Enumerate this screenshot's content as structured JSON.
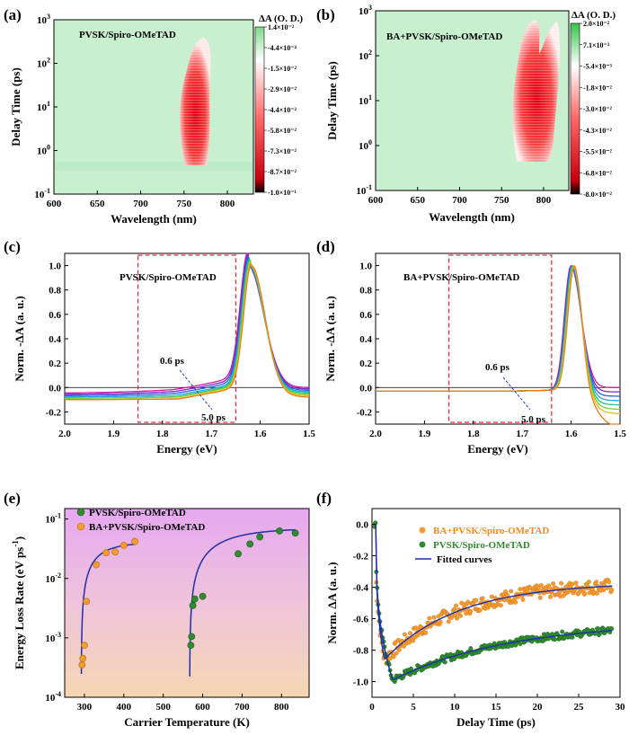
{
  "panels": {
    "a": {
      "label": "(a)",
      "sample": "PVSK/Spiro-OMeTAD",
      "xlabel": "Wavelength   (nm)",
      "ylabel": "Delay Time   (ps)",
      "xticks": [
        "600",
        "650",
        "700",
        "750",
        "800"
      ],
      "yticks": [
        "10",
        "10",
        "10",
        "10",
        "10"
      ],
      "yexp": [
        "-1",
        "0",
        "1",
        "2",
        "3"
      ],
      "cb_title": "ΔA (O. D.)",
      "cb_ticks": [
        "1.4×10⁻²",
        "-4.4×10⁻⁴",
        "-1.5×10⁻²",
        "-2.9×10⁻²",
        "-4.4×10⁻²",
        "-5.8×10⁻²",
        "-7.3×10⁻²",
        "-8.7×10⁻²",
        "-1.0×10⁻¹"
      ]
    },
    "b": {
      "label": "(b)",
      "sample": "BA+PVSK/Spiro-OMeTAD",
      "xlabel": "Wavelength   (nm)",
      "ylabel": "Delay Time   (ps)",
      "xticks": [
        "600",
        "650",
        "700",
        "750",
        "800"
      ],
      "yticks": [
        "10",
        "10",
        "10",
        "10",
        "10"
      ],
      "yexp": [
        "-1",
        "0",
        "1",
        "2",
        "3"
      ],
      "cb_title": "ΔA (O. D.)",
      "cb_ticks": [
        "2.0×10⁻²",
        "7.1×10⁻³",
        "-5.4×10⁻³",
        "-1.8×10⁻²",
        "-3.0×10⁻²",
        "-4.3×10⁻²",
        "-5.5×10⁻²",
        "-6.8×10⁻²",
        "-8.0×10⁻²"
      ]
    },
    "c": {
      "label": "(c)",
      "sample": "PVSK/Spiro-OMeTAD",
      "xlabel": "Energy   (eV)",
      "ylabel": "Norm. -ΔA   (a. u.)",
      "xticks": [
        "2.0",
        "1.9",
        "1.8",
        "1.7",
        "1.6",
        "1.5"
      ],
      "yticks": [
        "-0.2",
        "0.0",
        "0.2",
        "0.4",
        "0.6",
        "0.8",
        "1.0"
      ],
      "ann_start": "0.6 ps",
      "ann_end": "5.0 ps"
    },
    "d": {
      "label": "(d)",
      "sample": "BA+PVSK/Spiro-OMeTAD",
      "xlabel": "Energy   (eV)",
      "ylabel": "Norm. -ΔA   (a. u.)",
      "xticks": [
        "2.0",
        "1.9",
        "1.8",
        "1.7",
        "1.6",
        "1.5"
      ],
      "yticks": [
        "-0.2",
        "0.0",
        "0.2",
        "0.4",
        "0.6",
        "0.8",
        "1.0"
      ],
      "ann_start": "0.6 ps",
      "ann_end": "5.0 ps"
    },
    "e": {
      "label": "(e)",
      "xlabel": "Carrier Temperature   (K)",
      "ylabel": "Energy Loss Rate   (eV ps",
      "ylabel_sup": "-1",
      "ylabel_end": ")",
      "xticks": [
        "300",
        "400",
        "500",
        "600",
        "700",
        "800"
      ],
      "yticks": [
        "10",
        "10",
        "10",
        "10"
      ],
      "yexp": [
        "-4",
        "-3",
        "-2",
        "-1"
      ],
      "legend": [
        "PVSK/Spiro-OMeTAD",
        "BA+PVSK/Spiro-OMeTAD"
      ]
    },
    "f": {
      "label": "(f)",
      "xlabel": "Delay Time   (ps)",
      "ylabel": "Norm. ΔA   (a. u.)",
      "xticks": [
        "0",
        "5",
        "10",
        "15",
        "20",
        "25",
        "30"
      ],
      "yticks": [
        "0.0",
        "-0.2",
        "-0.4",
        "-0.6",
        "-0.8",
        "-1.0"
      ],
      "legend": [
        "BA+PVSK/Spiro-OMeTAD",
        "PVSK/Spiro-OMeTAD",
        "Fitted curves"
      ]
    }
  },
  "colors": {
    "green": "#2e8b2e",
    "orange": "#f59a2f",
    "fit": "#1f2fa8",
    "box": "#e8323a",
    "map_bg": "#c8f0cf",
    "map_red": "#e81020"
  },
  "chart_data": [
    {
      "type": "heatmap",
      "panel": "a",
      "x_range": [
        600,
        830
      ],
      "y_range": [
        0.1,
        1000
      ],
      "y_scale": "log",
      "feature": {
        "center_nm": 765,
        "delay_range_ps": [
          0.6,
          300
        ],
        "sign": "negative",
        "min_value": -0.1
      },
      "colorbar_range": [
        -0.1,
        0.014
      ]
    },
    {
      "type": "heatmap",
      "panel": "b",
      "x_range": [
        600,
        830
      ],
      "y_range": [
        0.1,
        1000
      ],
      "y_scale": "log",
      "feature": {
        "center_nm": 785,
        "delay_range_ps": [
          0.6,
          800
        ],
        "sign": "negative",
        "min_value": -0.08
      },
      "colorbar_range": [
        -0.08,
        0.02
      ]
    },
    {
      "type": "line",
      "panel": "c",
      "x_range": [
        2.0,
        1.5
      ],
      "ylim": [
        -0.3,
        1.1
      ],
      "series": [
        {
          "name": "",
          "color": "#d01aa0",
          "peak": 1.625,
          "width_low": 0.022,
          "width_high": 0.045,
          "tail": 0.12,
          "offset": -0.05
        },
        {
          "name": "",
          "color": "#7a2bd0",
          "peak": 1.624,
          "width_low": 0.022,
          "width_high": 0.044,
          "tail": 0.1,
          "offset": -0.06
        },
        {
          "name": "",
          "color": "#2b5fd9",
          "peak": 1.623,
          "width_low": 0.022,
          "width_high": 0.043,
          "tail": 0.08,
          "offset": -0.07
        },
        {
          "name": "",
          "color": "#1aaae0",
          "peak": 1.622,
          "width_low": 0.022,
          "width_high": 0.042,
          "tail": 0.06,
          "offset": -0.08
        },
        {
          "name": "",
          "color": "#22c08a",
          "peak": 1.621,
          "width_low": 0.022,
          "width_high": 0.041,
          "tail": 0.05,
          "offset": -0.09
        },
        {
          "name": "",
          "color": "#7ccf2a",
          "peak": 1.62,
          "width_low": 0.022,
          "width_high": 0.04,
          "tail": 0.04,
          "offset": -0.09
        },
        {
          "name": "",
          "color": "#e0c21a",
          "peak": 1.619,
          "width_low": 0.022,
          "width_high": 0.04,
          "tail": 0.03,
          "offset": -0.1
        },
        {
          "name": "",
          "color": "#f07a1a",
          "peak": 1.618,
          "width_low": 0.022,
          "width_high": 0.039,
          "tail": 0.02,
          "offset": -0.1
        }
      ],
      "highlight_box": {
        "x": [
          1.85,
          1.65
        ],
        "y": [
          -0.3,
          1.1
        ]
      }
    },
    {
      "type": "line",
      "panel": "d",
      "x_range": [
        2.0,
        1.5
      ],
      "ylim": [
        -0.3,
        1.1
      ],
      "series": [
        {
          "name": "",
          "color": "#d01aa0",
          "peak": 1.601,
          "width_low": 0.018,
          "width_high": 0.03
        },
        {
          "name": "",
          "color": "#7a2bd0",
          "peak": 1.6,
          "width_low": 0.018,
          "width_high": 0.029
        },
        {
          "name": "",
          "color": "#2b5fd9",
          "peak": 1.599,
          "width_low": 0.018,
          "width_high": 0.028
        },
        {
          "name": "",
          "color": "#1aaae0",
          "peak": 1.598,
          "width_low": 0.018,
          "width_high": 0.027
        },
        {
          "name": "",
          "color": "#22c08a",
          "peak": 1.597,
          "width_low": 0.018,
          "width_high": 0.026
        },
        {
          "name": "",
          "color": "#7ccf2a",
          "peak": 1.596,
          "width_low": 0.018,
          "width_high": 0.025
        },
        {
          "name": "",
          "color": "#e0c21a",
          "peak": 1.595,
          "width_low": 0.018,
          "width_high": 0.024
        },
        {
          "name": "",
          "color": "#f07a1a",
          "peak": 1.594,
          "width_low": 0.018,
          "width_high": 0.022
        }
      ],
      "highlight_box": {
        "x": [
          1.85,
          1.64
        ],
        "y": [
          -0.3,
          1.1
        ]
      }
    },
    {
      "type": "scatter",
      "panel": "e",
      "x_range": [
        250,
        870
      ],
      "y_range": [
        0.0001,
        0.15
      ],
      "y_scale": "log",
      "series": [
        {
          "name": "PVSK/Spiro-OMeTAD",
          "color": "#2e8b2e",
          "x": [
            570,
            572,
            575,
            580,
            600,
            690,
            720,
            745,
            795,
            835
          ],
          "y": [
            0.00075,
            0.00105,
            0.0035,
            0.0045,
            0.005,
            0.026,
            0.038,
            0.05,
            0.063,
            0.058
          ]
        },
        {
          "name": "BA+PVSK/Spiro-OMeTAD",
          "color": "#f59a2f",
          "x": [
            294,
            296,
            300,
            305,
            330,
            355,
            378,
            400,
            428
          ],
          "y": [
            0.00035,
            0.00045,
            0.00075,
            0.0041,
            0.017,
            0.027,
            0.028,
            0.036,
            0.042
          ]
        }
      ],
      "fits": [
        {
          "color": "#1f2fa8",
          "x0": 292,
          "x_end": 430,
          "a": 0.04
        },
        {
          "color": "#1f2fa8",
          "x0": 567,
          "x_end": 835,
          "a": 0.07
        }
      ]
    },
    {
      "type": "scatter",
      "panel": "f",
      "x_range": [
        0,
        30
      ],
      "ylim": [
        -1.1,
        0.1
      ],
      "series": [
        {
          "name": "BA+PVSK/Spiro-OMeTAD",
          "color": "#f59a2f",
          "min": -0.86,
          "t_min": 1.5,
          "plateau": -0.37,
          "tau": 9,
          "noise": 0.04
        },
        {
          "name": "PVSK/Spiro-OMeTAD",
          "color": "#2e8b2e",
          "min": -0.99,
          "t_min": 2.5,
          "plateau": -0.62,
          "tau": 14,
          "noise": 0.02
        }
      ],
      "fit_name": "Fitted curves"
    }
  ]
}
